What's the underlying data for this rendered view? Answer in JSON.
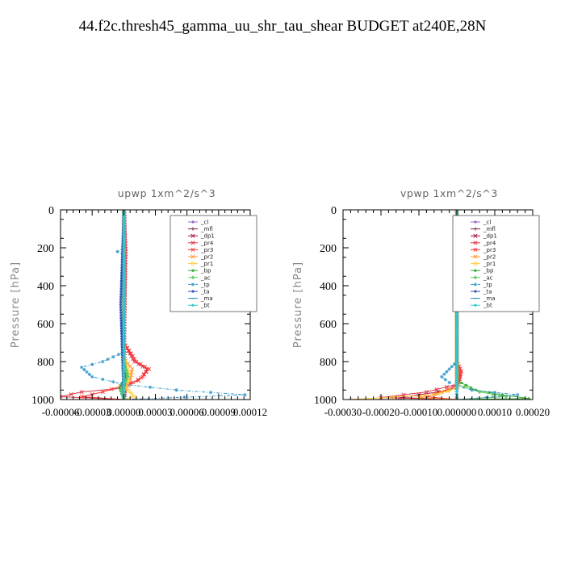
{
  "title": "44.f2c.thresh45_gamma_uu_shr_tau_shear  BUDGET at240E,28N",
  "chart_data": [
    {
      "type": "line",
      "title": "upwp   1xm^2/s^3",
      "ylabel": "Pressure  [hPa]",
      "ylim": [
        1000,
        0
      ],
      "xlim": [
        -6e-05,
        0.00012
      ],
      "xticks": [
        "-0.00006",
        "-0.00003",
        "0.00000",
        "0.00003",
        "0.00006",
        "0.00009",
        "0.00012"
      ],
      "yticks": [
        "0",
        "200",
        "400",
        "600",
        "800",
        "1000"
      ],
      "legend_position": "upper-right",
      "series": [
        {
          "name": "_cl",
          "color": "#9966cc",
          "marker": "dot",
          "dash": "",
          "points": [
            [
              0.0,
              0
            ],
            [
              0.0,
              500
            ],
            [
              0.0,
              1000
            ]
          ]
        },
        {
          "name": "_mfl",
          "color": "#7a1e4a",
          "marker": "plus",
          "dash": "",
          "points": [
            [
              1e-06,
              0
            ],
            [
              1e-06,
              500
            ],
            [
              1e-06,
              1000
            ]
          ]
        },
        {
          "name": "_dp1",
          "color": "#aa1140",
          "marker": "x",
          "dash": "",
          "points": [
            [
              0.0,
              0
            ],
            [
              0.0,
              500
            ],
            [
              0.0,
              800
            ],
            [
              2e-06,
              900
            ],
            [
              0.0,
              1000
            ]
          ]
        },
        {
          "name": "_pr4",
          "color": "#dd3344",
          "marker": "x",
          "dash": "",
          "points": [
            [
              0.0,
              0
            ],
            [
              2e-06,
              220
            ],
            [
              0.0,
              700
            ],
            [
              1e-05,
              800
            ],
            [
              2.2e-05,
              840
            ],
            [
              1.8e-05,
              880
            ],
            [
              0.0,
              940
            ],
            [
              -4e-05,
              960
            ],
            [
              -6e-05,
              985
            ],
            [
              0.0,
              1000
            ]
          ]
        },
        {
          "name": "_pr3",
          "color": "#ff3333",
          "marker": "x",
          "dash": "",
          "points": [
            [
              0.0,
              0
            ],
            [
              0.0,
              700
            ],
            [
              1.2e-05,
              800
            ],
            [
              2.4e-05,
              840
            ],
            [
              1.4e-05,
              900
            ],
            [
              -2e-05,
              960
            ],
            [
              -4e-05,
              985
            ],
            [
              0.0,
              1000
            ]
          ]
        },
        {
          "name": "_pr2",
          "color": "#ff9933",
          "marker": "x",
          "dash": "",
          "points": [
            [
              0.0,
              0
            ],
            [
              0.0,
              780
            ],
            [
              8e-06,
              840
            ],
            [
              6e-06,
              900
            ],
            [
              0.0,
              960
            ],
            [
              0.0,
              1000
            ]
          ]
        },
        {
          "name": "_pr1",
          "color": "#ffcc33",
          "marker": "circle",
          "dash": "",
          "points": [
            [
              0.0,
              0
            ],
            [
              0.0,
              780
            ],
            [
              5e-06,
              860
            ],
            [
              2e-06,
              940
            ],
            [
              1e-05,
              985
            ],
            [
              0.0,
              1000
            ]
          ]
        },
        {
          "name": "_bp",
          "color": "#33aa33",
          "marker": "dot",
          "dash": "",
          "points": [
            [
              0.0,
              0
            ],
            [
              0.0,
              800
            ],
            [
              3e-06,
              860
            ],
            [
              -4e-06,
              940
            ],
            [
              0.0,
              1000
            ]
          ]
        },
        {
          "name": "_ac",
          "color": "#66cc66",
          "marker": "diamond",
          "dash": "",
          "points": [
            [
              0.0,
              0
            ],
            [
              0.0,
              800
            ],
            [
              4e-06,
              880
            ],
            [
              -2e-06,
              950
            ],
            [
              0.0,
              1000
            ]
          ]
        },
        {
          "name": "_tp",
          "color": "#3399cc",
          "marker": "star",
          "dash": "4,2,1,2",
          "points": [
            [
              0.0,
              0
            ],
            [
              0.0,
              200
            ],
            [
              -6e-06,
              220
            ],
            [
              0.0,
              240
            ],
            [
              0.0,
              750
            ],
            [
              -2e-05,
              800
            ],
            [
              -4e-05,
              830
            ],
            [
              -3e-05,
              880
            ],
            [
              0.0,
              920
            ],
            [
              5e-05,
              950
            ],
            [
              0.000115,
              975
            ],
            [
              0.0,
              1000
            ]
          ]
        },
        {
          "name": "_ta",
          "color": "#3355bb",
          "marker": "dot",
          "dash": "",
          "points": [
            [
              0.0,
              0
            ],
            [
              -3e-06,
              500
            ],
            [
              0.0,
              1000
            ]
          ]
        },
        {
          "name": "_ma",
          "color": "#3388bb",
          "marker": "dash",
          "dash": "",
          "points": [
            [
              0.0,
              0
            ],
            [
              0.0,
              1000
            ]
          ]
        },
        {
          "name": "_bt",
          "color": "#33cccc",
          "marker": "dot",
          "dash": "",
          "points": [
            [
              0.0,
              0
            ],
            [
              0.0,
              1000
            ]
          ]
        }
      ]
    },
    {
      "type": "line",
      "title": "vpwp   1xm^2/s^3",
      "ylabel": "Pressure  [hPa]",
      "ylim": [
        1000,
        0
      ],
      "xlim": [
        -0.0003,
        0.0002
      ],
      "xticks": [
        "-0.00030",
        "-0.00020",
        "-0.00010",
        "0.000000",
        "0.00010",
        "0.00020"
      ],
      "yticks": [
        "0",
        "200",
        "400",
        "600",
        "800",
        "1000"
      ],
      "legend_position": "upper-right",
      "series": [
        {
          "name": "_cl",
          "color": "#9966cc",
          "marker": "dot",
          "dash": "",
          "points": [
            [
              0.0,
              0
            ],
            [
              0.0,
              1000
            ]
          ]
        },
        {
          "name": "_mfl",
          "color": "#7a1e4a",
          "marker": "plus",
          "dash": "",
          "points": [
            [
              0.0,
              0
            ],
            [
              0.0,
              1000
            ]
          ]
        },
        {
          "name": "_dp1",
          "color": "#aa1140",
          "marker": "x",
          "dash": "",
          "points": [
            [
              0.0,
              0
            ],
            [
              0.0,
              940
            ],
            [
              -5e-05,
              960
            ],
            [
              -0.00015,
              990
            ],
            [
              0.0,
              1000
            ]
          ]
        },
        {
          "name": "_pr4",
          "color": "#dd3344",
          "marker": "x",
          "dash": "",
          "points": [
            [
              0.0,
              0
            ],
            [
              0.0,
              800
            ],
            [
              8e-06,
              870
            ],
            [
              0.0,
              920
            ],
            [
              -8e-05,
              960
            ],
            [
              -0.0002,
              990
            ],
            [
              0.0,
              1000
            ]
          ]
        },
        {
          "name": "_pr3",
          "color": "#ff3333",
          "marker": "x",
          "dash": "",
          "points": [
            [
              0.0,
              0
            ],
            [
              0.0,
              800
            ],
            [
              1.2e-05,
              850
            ],
            [
              5e-06,
              920
            ],
            [
              -4e-05,
              960
            ],
            [
              -8e-05,
              985
            ],
            [
              0.0,
              1000
            ]
          ]
        },
        {
          "name": "_pr2",
          "color": "#ff9933",
          "marker": "x",
          "dash": "",
          "points": [
            [
              0.0,
              0
            ],
            [
              0.0,
              940
            ],
            [
              -5e-05,
              970
            ],
            [
              -0.0001,
              990
            ],
            [
              0.0,
              1000
            ]
          ]
        },
        {
          "name": "_pr1",
          "color": "#ffcc33",
          "marker": "circle",
          "dash": "",
          "points": [
            [
              0.0,
              0
            ],
            [
              0.0,
              940
            ],
            [
              -6e-05,
              975
            ],
            [
              -0.00028,
              1000
            ]
          ]
        },
        {
          "name": "_bp",
          "color": "#33aa33",
          "marker": "dot",
          "dash": "",
          "points": [
            [
              0.0,
              0
            ],
            [
              0.0,
              900
            ],
            [
              5e-05,
              950
            ],
            [
              0.00012,
              975
            ],
            [
              0.00019,
              995
            ],
            [
              0.0,
              1000
            ]
          ]
        },
        {
          "name": "_ac",
          "color": "#66cc66",
          "marker": "diamond",
          "dash": "",
          "points": [
            [
              0.0,
              0
            ],
            [
              0.0,
              920
            ],
            [
              6e-05,
              960
            ],
            [
              0.00013,
              985
            ],
            [
              0.0,
              1000
            ]
          ]
        },
        {
          "name": "_tp",
          "color": "#3399cc",
          "marker": "star",
          "dash": "4,2,1,2",
          "points": [
            [
              0.0,
              0
            ],
            [
              0.0,
              800
            ],
            [
              -4e-05,
              880
            ],
            [
              -2e-05,
              910
            ],
            [
              0.0,
              930
            ],
            [
              4e-05,
              950
            ],
            [
              0.00016,
              975
            ],
            [
              0.0,
              1000
            ]
          ]
        },
        {
          "name": "_ta",
          "color": "#3355bb",
          "marker": "dot",
          "dash": "",
          "points": [
            [
              0.0,
              0
            ],
            [
              0.0,
              1000
            ]
          ]
        },
        {
          "name": "_ma",
          "color": "#3388bb",
          "marker": "dash",
          "dash": "",
          "points": [
            [
              0.0,
              0
            ],
            [
              0.0,
              1000
            ]
          ]
        },
        {
          "name": "_bt",
          "color": "#33cccc",
          "marker": "dot",
          "dash": "",
          "points": [
            [
              0.0,
              0
            ],
            [
              0.0,
              1000
            ]
          ]
        }
      ]
    }
  ]
}
